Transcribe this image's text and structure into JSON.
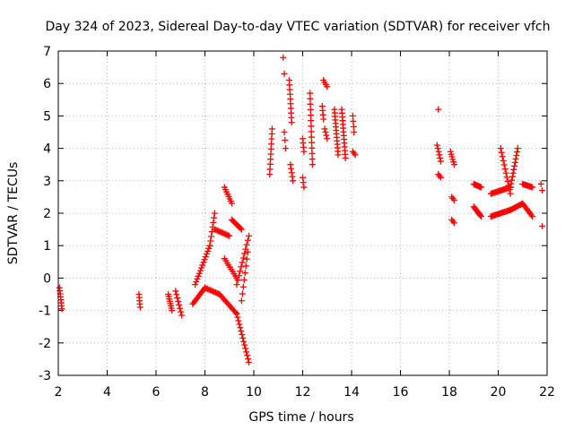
{
  "chart_data": {
    "type": "scatter",
    "title": "Day 324 of 2023, Sidereal Day-to-day VTEC variation (SDTVAR) for receiver vfch",
    "xlabel": "GPS time / hours",
    "ylabel": "SDTVAR / TECUs",
    "xlim": [
      2,
      22
    ],
    "ylim": [
      -3,
      7
    ],
    "xticks": [
      2,
      4,
      6,
      8,
      10,
      12,
      14,
      16,
      18,
      20,
      22
    ],
    "yticks": [
      -3,
      -2,
      -1,
      0,
      1,
      2,
      3,
      4,
      5,
      6,
      7
    ],
    "grid": true,
    "marker": "+",
    "marker_color": "#ff0000",
    "series": [
      {
        "name": "SDTVAR",
        "segments": [
          {
            "x0": 2.05,
            "y0": -0.3,
            "x1": 2.15,
            "y1": -0.95,
            "n": 8
          },
          {
            "x0": 5.3,
            "y0": -0.5,
            "x1": 5.35,
            "y1": -0.9,
            "n": 5
          },
          {
            "x0": 6.5,
            "y0": -0.5,
            "x1": 6.65,
            "y1": -1.0,
            "n": 8
          },
          {
            "x0": 6.8,
            "y0": -0.4,
            "x1": 7.05,
            "y1": -1.15,
            "n": 8
          },
          {
            "x0": 7.5,
            "y0": -0.8,
            "x1": 8.0,
            "y1": -0.3,
            "n": 12
          },
          {
            "x0": 8.0,
            "y0": -0.3,
            "x1": 8.6,
            "y1": -0.5,
            "n": 12
          },
          {
            "x0": 8.6,
            "y0": -0.5,
            "x1": 9.3,
            "y1": -1.1,
            "n": 15
          },
          {
            "x0": 9.3,
            "y0": -1.1,
            "x1": 9.8,
            "y1": -2.6,
            "n": 15
          },
          {
            "x0": 7.6,
            "y0": -0.2,
            "x1": 8.2,
            "y1": 1.0,
            "n": 15
          },
          {
            "x0": 8.2,
            "y0": 1.0,
            "x1": 8.4,
            "y1": 2.0,
            "n": 8
          },
          {
            "x0": 8.4,
            "y0": 1.5,
            "x1": 9.0,
            "y1": 1.3,
            "n": 12
          },
          {
            "x0": 8.8,
            "y0": 2.8,
            "x1": 9.1,
            "y1": 2.3,
            "n": 8
          },
          {
            "x0": 9.1,
            "y0": 1.8,
            "x1": 9.5,
            "y1": 1.5,
            "n": 10
          },
          {
            "x0": 8.8,
            "y0": 0.6,
            "x1": 9.3,
            "y1": 0.0,
            "n": 10
          },
          {
            "x0": 9.3,
            "y0": -0.2,
            "x1": 9.8,
            "y1": 1.3,
            "n": 12
          },
          {
            "x0": 9.5,
            "y0": -0.7,
            "x1": 9.75,
            "y1": 0.8,
            "n": 8
          },
          {
            "x0": 10.65,
            "y0": 3.2,
            "x1": 10.75,
            "y1": 4.6,
            "n": 10
          },
          {
            "x0": 11.2,
            "y0": 6.8,
            "x1": 11.25,
            "y1": 6.3,
            "n": 2
          },
          {
            "x0": 11.25,
            "y0": 4.5,
            "x1": 11.3,
            "y1": 4.0,
            "n": 3
          },
          {
            "x0": 11.45,
            "y0": 6.1,
            "x1": 11.55,
            "y1": 4.8,
            "n": 10
          },
          {
            "x0": 11.5,
            "y0": 3.5,
            "x1": 11.6,
            "y1": 3.0,
            "n": 5
          },
          {
            "x0": 12.0,
            "y0": 4.3,
            "x1": 12.05,
            "y1": 3.9,
            "n": 4
          },
          {
            "x0": 12.0,
            "y0": 3.1,
            "x1": 12.05,
            "y1": 2.8,
            "n": 3
          },
          {
            "x0": 12.3,
            "y0": 5.7,
            "x1": 12.4,
            "y1": 3.5,
            "n": 14
          },
          {
            "x0": 12.8,
            "y0": 5.3,
            "x1": 12.85,
            "y1": 4.9,
            "n": 4
          },
          {
            "x0": 12.85,
            "y0": 6.1,
            "x1": 13.0,
            "y1": 5.9,
            "n": 4
          },
          {
            "x0": 12.9,
            "y0": 4.6,
            "x1": 13.0,
            "y1": 4.3,
            "n": 4
          },
          {
            "x0": 13.3,
            "y0": 5.2,
            "x1": 13.45,
            "y1": 3.8,
            "n": 14
          },
          {
            "x0": 13.6,
            "y0": 5.2,
            "x1": 13.75,
            "y1": 3.7,
            "n": 14
          },
          {
            "x0": 14.05,
            "y0": 5.0,
            "x1": 14.1,
            "y1": 4.5,
            "n": 4
          },
          {
            "x0": 14.05,
            "y0": 3.9,
            "x1": 14.15,
            "y1": 3.8,
            "n": 3
          },
          {
            "x0": 17.55,
            "y0": 5.2,
            "x1": 17.6,
            "y1": 5.2,
            "n": 1
          },
          {
            "x0": 17.5,
            "y0": 4.1,
            "x1": 17.65,
            "y1": 3.6,
            "n": 6
          },
          {
            "x0": 17.55,
            "y0": 3.2,
            "x1": 17.65,
            "y1": 3.1,
            "n": 3
          },
          {
            "x0": 18.05,
            "y0": 3.9,
            "x1": 18.2,
            "y1": 3.5,
            "n": 6
          },
          {
            "x0": 18.1,
            "y0": 2.5,
            "x1": 18.2,
            "y1": 2.4,
            "n": 3
          },
          {
            "x0": 18.1,
            "y0": 1.8,
            "x1": 18.2,
            "y1": 1.7,
            "n": 3
          },
          {
            "x0": 19.0,
            "y0": 2.9,
            "x1": 19.3,
            "y1": 2.8,
            "n": 10
          },
          {
            "x0": 19.0,
            "y0": 2.2,
            "x1": 19.3,
            "y1": 1.9,
            "n": 10
          },
          {
            "x0": 19.7,
            "y0": 2.6,
            "x1": 20.5,
            "y1": 2.8,
            "n": 18
          },
          {
            "x0": 19.7,
            "y0": 1.9,
            "x1": 20.5,
            "y1": 2.1,
            "n": 18
          },
          {
            "x0": 20.1,
            "y0": 4.0,
            "x1": 20.5,
            "y1": 2.6,
            "n": 12
          },
          {
            "x0": 20.5,
            "y0": 2.8,
            "x1": 20.8,
            "y1": 4.0,
            "n": 12
          },
          {
            "x0": 20.5,
            "y0": 2.1,
            "x1": 21.0,
            "y1": 2.3,
            "n": 12
          },
          {
            "x0": 21.0,
            "y0": 2.9,
            "x1": 21.4,
            "y1": 2.8,
            "n": 10
          },
          {
            "x0": 21.0,
            "y0": 2.3,
            "x1": 21.4,
            "y1": 1.9,
            "n": 10
          },
          {
            "x0": 21.75,
            "y0": 2.9,
            "x1": 21.8,
            "y1": 2.7,
            "n": 2
          },
          {
            "x0": 21.8,
            "y0": 1.6,
            "x1": 21.85,
            "y1": 1.6,
            "n": 1
          }
        ]
      }
    ]
  }
}
